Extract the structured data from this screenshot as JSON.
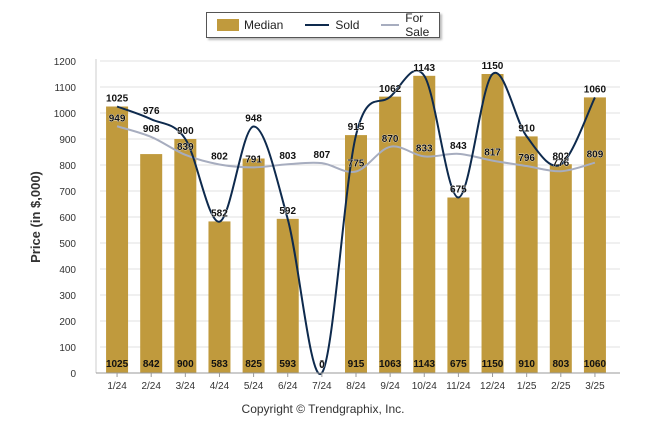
{
  "chart_data": {
    "type": "bar",
    "categories": [
      "1/24",
      "2/24",
      "3/24",
      "4/24",
      "5/24",
      "6/24",
      "7/24",
      "8/24",
      "9/24",
      "10/24",
      "11/24",
      "12/24",
      "1/25",
      "2/25",
      "3/25"
    ],
    "series": [
      {
        "name": "Median",
        "type": "bar",
        "color": "#c09a3d",
        "values": [
          1025,
          842,
          900,
          583,
          825,
          593,
          0,
          915,
          1063,
          1143,
          675,
          1150,
          910,
          803,
          1060
        ]
      },
      {
        "name": "Sold",
        "type": "line",
        "color": "#0e2a4d",
        "values": [
          1025,
          976,
          900,
          582,
          948,
          592,
          0,
          915,
          1062,
          1143,
          675,
          1150,
          910,
          802,
          1060
        ]
      },
      {
        "name": "For Sale",
        "type": "line",
        "color": "#a7adbf",
        "values": [
          949,
          908,
          839,
          802,
          791,
          803,
          807,
          775,
          870,
          833,
          843,
          817,
          796,
          776,
          809
        ]
      }
    ],
    "ylabel": "Price (in $,000)",
    "ylim": [
      0,
      1200
    ],
    "yticks": [
      0,
      100,
      200,
      300,
      400,
      500,
      600,
      700,
      800,
      900,
      1000,
      1100,
      1200
    ],
    "grid": true,
    "legend": "top-center"
  },
  "footer": "Copyright © Trendgraphix, Inc."
}
